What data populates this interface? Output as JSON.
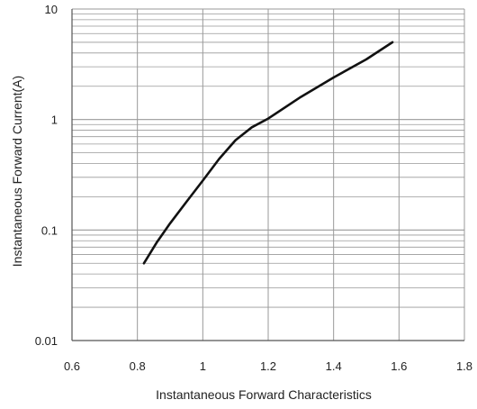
{
  "chart_data": {
    "type": "line",
    "title": "",
    "xlabel": "Instantaneous Forward Characteristics",
    "ylabel": "Instantaneous Forward Current(A)",
    "xlim": [
      0.6,
      1.8
    ],
    "ylim": [
      0.01,
      10
    ],
    "yscale": "log",
    "grid": true,
    "x_ticks": [
      "0.6",
      "0.8",
      "1",
      "1.2",
      "1.4",
      "1.6",
      "1.8"
    ],
    "y_ticks": [
      "0.01",
      "0.1",
      "1",
      "10"
    ],
    "series": [
      {
        "x": [
          0.82,
          0.86,
          0.9,
          0.95,
          1.0,
          1.05,
          1.1,
          1.15,
          1.2,
          1.3,
          1.4,
          1.5,
          1.58
        ],
        "y": [
          0.05,
          0.078,
          0.115,
          0.18,
          0.28,
          0.44,
          0.65,
          0.85,
          1.02,
          1.6,
          2.4,
          3.5,
          5.0
        ]
      }
    ],
    "colors": {
      "line": "#111111",
      "grid": "#999999",
      "axis": "#555555",
      "background": "#ffffff"
    }
  }
}
